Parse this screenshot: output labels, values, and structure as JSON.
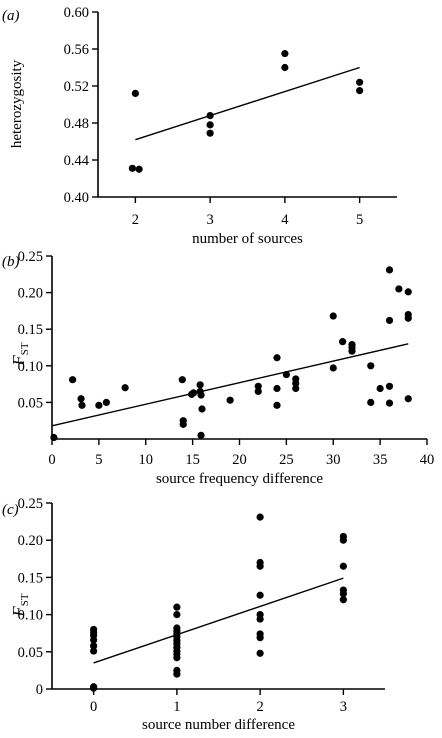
{
  "chart_data": [
    {
      "type": "scatter",
      "panel_label": "(a)",
      "xlabel": "number of sources",
      "ylabel": "heterozygosity",
      "ylabel_sub": "",
      "xlim": [
        1.5,
        5.5
      ],
      "ylim": [
        0.4,
        0.6
      ],
      "xticks": [
        2,
        3,
        4,
        5
      ],
      "yticks": [
        0.4,
        0.44,
        0.48,
        0.52,
        0.56,
        0.6
      ],
      "ytick_decimals": 2,
      "points": [
        {
          "x": 2.0,
          "y": 0.512
        },
        {
          "x": 1.96,
          "y": 0.431
        },
        {
          "x": 2.05,
          "y": 0.43
        },
        {
          "x": 3.0,
          "y": 0.488
        },
        {
          "x": 3.0,
          "y": 0.478
        },
        {
          "x": 3.0,
          "y": 0.469
        },
        {
          "x": 4.0,
          "y": 0.555
        },
        {
          "x": 4.0,
          "y": 0.54
        },
        {
          "x": 5.0,
          "y": 0.524
        },
        {
          "x": 5.0,
          "y": 0.515
        }
      ],
      "fit": {
        "x": [
          2.0,
          5.0
        ],
        "y": [
          0.462,
          0.54
        ]
      }
    },
    {
      "type": "scatter",
      "panel_label": "(b)",
      "xlabel": "source frequency difference",
      "ylabel": "F",
      "ylabel_sub": "ST",
      "xlim": [
        0,
        40
      ],
      "ylim": [
        0,
        0.25
      ],
      "xticks": [
        0,
        5,
        10,
        15,
        20,
        25,
        30,
        35,
        40
      ],
      "yticks": [
        0.05,
        0.1,
        0.15,
        0.2,
        0.25
      ],
      "ytick_decimals": 2,
      "points": [
        {
          "x": 0.2,
          "y": 0.002
        },
        {
          "x": 2.2,
          "y": 0.081
        },
        {
          "x": 3.1,
          "y": 0.055
        },
        {
          "x": 3.2,
          "y": 0.046
        },
        {
          "x": 5.0,
          "y": 0.046
        },
        {
          "x": 5.8,
          "y": 0.05
        },
        {
          "x": 7.8,
          "y": 0.07
        },
        {
          "x": 13.9,
          "y": 0.081
        },
        {
          "x": 14.0,
          "y": 0.025
        },
        {
          "x": 14.0,
          "y": 0.02
        },
        {
          "x": 14.9,
          "y": 0.061
        },
        {
          "x": 15.1,
          "y": 0.063
        },
        {
          "x": 15.8,
          "y": 0.074
        },
        {
          "x": 15.8,
          "y": 0.065
        },
        {
          "x": 15.9,
          "y": 0.06
        },
        {
          "x": 16.0,
          "y": 0.041
        },
        {
          "x": 15.9,
          "y": 0.005
        },
        {
          "x": 19.0,
          "y": 0.053
        },
        {
          "x": 22.0,
          "y": 0.072
        },
        {
          "x": 22.0,
          "y": 0.065
        },
        {
          "x": 24.0,
          "y": 0.111
        },
        {
          "x": 24.0,
          "y": 0.069
        },
        {
          "x": 24.0,
          "y": 0.046
        },
        {
          "x": 25.0,
          "y": 0.088
        },
        {
          "x": 26.0,
          "y": 0.082
        },
        {
          "x": 26.0,
          "y": 0.076
        },
        {
          "x": 26.0,
          "y": 0.069
        },
        {
          "x": 30.0,
          "y": 0.168
        },
        {
          "x": 30.0,
          "y": 0.097
        },
        {
          "x": 31.0,
          "y": 0.133
        },
        {
          "x": 32.0,
          "y": 0.129
        },
        {
          "x": 32.0,
          "y": 0.125
        },
        {
          "x": 32.0,
          "y": 0.12
        },
        {
          "x": 34.0,
          "y": 0.1
        },
        {
          "x": 34.0,
          "y": 0.05
        },
        {
          "x": 35.0,
          "y": 0.069
        },
        {
          "x": 36.0,
          "y": 0.231
        },
        {
          "x": 36.0,
          "y": 0.162
        },
        {
          "x": 36.0,
          "y": 0.072
        },
        {
          "x": 36.0,
          "y": 0.049
        },
        {
          "x": 37.0,
          "y": 0.205
        },
        {
          "x": 38.0,
          "y": 0.201
        },
        {
          "x": 38.0,
          "y": 0.17
        },
        {
          "x": 38.0,
          "y": 0.165
        },
        {
          "x": 38.0,
          "y": 0.055
        }
      ],
      "fit": {
        "x": [
          0,
          38
        ],
        "y": [
          0.018,
          0.13
        ]
      }
    },
    {
      "type": "scatter",
      "panel_label": "(c)",
      "xlabel": "source number difference",
      "ylabel": "F",
      "ylabel_sub": "ST",
      "xlim": [
        -0.5,
        3.5
      ],
      "ylim": [
        0,
        0.25
      ],
      "xticks": [
        0,
        1,
        2,
        3
      ],
      "yticks": [
        0,
        0.05,
        0.1,
        0.15,
        0.2,
        0.25
      ],
      "ytick_decimals": 2,
      "points": [
        {
          "x": 0,
          "y": 0.08
        },
        {
          "x": 0,
          "y": 0.076
        },
        {
          "x": 0,
          "y": 0.072
        },
        {
          "x": 0,
          "y": 0.066
        },
        {
          "x": 0,
          "y": 0.058
        },
        {
          "x": 0,
          "y": 0.051
        },
        {
          "x": 0,
          "y": 0.003
        },
        {
          "x": 0,
          "y": 0.001
        },
        {
          "x": 1,
          "y": 0.11
        },
        {
          "x": 1,
          "y": 0.1
        },
        {
          "x": 1,
          "y": 0.082
        },
        {
          "x": 1,
          "y": 0.078
        },
        {
          "x": 1,
          "y": 0.074
        },
        {
          "x": 1,
          "y": 0.07
        },
        {
          "x": 1,
          "y": 0.065
        },
        {
          "x": 1,
          "y": 0.061
        },
        {
          "x": 1,
          "y": 0.056
        },
        {
          "x": 1,
          "y": 0.051
        },
        {
          "x": 1,
          "y": 0.047
        },
        {
          "x": 1,
          "y": 0.042
        },
        {
          "x": 1,
          "y": 0.025
        },
        {
          "x": 1,
          "y": 0.02
        },
        {
          "x": 2,
          "y": 0.231
        },
        {
          "x": 2,
          "y": 0.17
        },
        {
          "x": 2,
          "y": 0.165
        },
        {
          "x": 2,
          "y": 0.126
        },
        {
          "x": 2,
          "y": 0.1
        },
        {
          "x": 2,
          "y": 0.094
        },
        {
          "x": 2,
          "y": 0.074
        },
        {
          "x": 2,
          "y": 0.069
        },
        {
          "x": 2,
          "y": 0.048
        },
        {
          "x": 3,
          "y": 0.205
        },
        {
          "x": 3,
          "y": 0.2
        },
        {
          "x": 3,
          "y": 0.165
        },
        {
          "x": 3,
          "y": 0.133
        },
        {
          "x": 3,
          "y": 0.128
        },
        {
          "x": 3,
          "y": 0.12
        }
      ],
      "fit": {
        "x": [
          0,
          3
        ],
        "y": [
          0.035,
          0.149
        ]
      }
    }
  ]
}
